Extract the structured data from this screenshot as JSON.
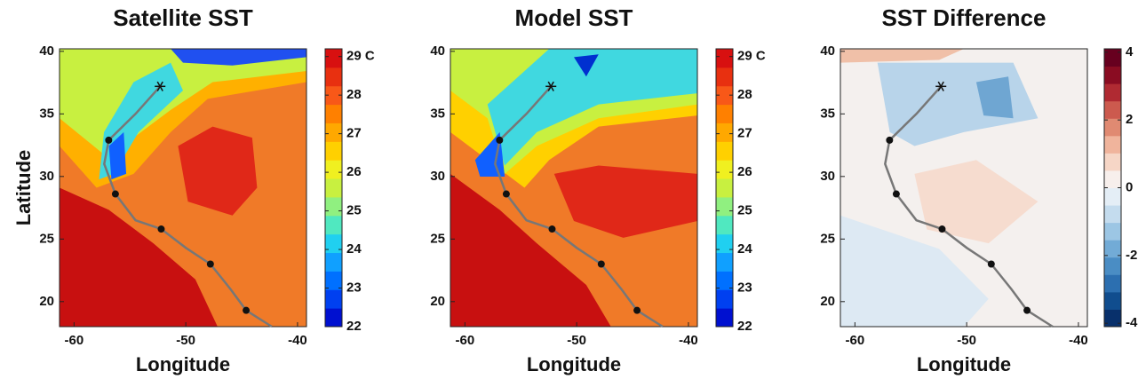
{
  "chart_data": [
    {
      "type": "map",
      "title": "Satellite SST",
      "xlabel": "Longitude",
      "ylabel": "Latitude",
      "xlim": [
        -61.3,
        -39.2
      ],
      "ylim": [
        18,
        40.2
      ],
      "xticks": [
        -60,
        -50,
        -40
      ],
      "yticks": [
        20,
        25,
        30,
        35,
        40
      ],
      "clim": [
        22,
        29.2
      ],
      "cticks": [
        22,
        23,
        24,
        25,
        26,
        27,
        28,
        {
          "value": 29,
          "label": "29 C"
        }
      ],
      "colormap": [
        "#0010d0",
        "#0040f0",
        "#0070ff",
        "#10a0ff",
        "#20d0f0",
        "#50e8c0",
        "#90f080",
        "#c8f040",
        "#f0f020",
        "#ffd000",
        "#ffa800",
        "#ff8000",
        "#f85818",
        "#e83010",
        "#d81010"
      ],
      "track": {
        "x": [
          -52.3,
          -54.5,
          -56.9,
          -57.3,
          -56.3,
          -54.5,
          -52.2,
          -50,
          -47.8,
          -46,
          -44.6,
          -42.3
        ],
        "y": [
          37.2,
          35,
          32.9,
          31,
          28.6,
          26.5,
          25.8,
          24.3,
          23.0,
          21,
          19.3,
          18
        ]
      },
      "markers": {
        "x": [
          -56.9,
          -56.3,
          -52.2,
          -47.8,
          -44.6
        ],
        "y": [
          32.9,
          28.6,
          25.8,
          23.0,
          19.3
        ]
      },
      "star": {
        "x": -52.3,
        "y": 37.2
      }
    },
    {
      "type": "map",
      "title": "Model SST",
      "xlabel": "Longitude",
      "xlim": [
        -61.3,
        -39.2
      ],
      "ylim": [
        18,
        40.2
      ],
      "xticks": [
        -60,
        -50,
        -40
      ],
      "yticks": [
        20,
        25,
        30,
        35,
        40
      ],
      "clim": [
        22,
        29.2
      ],
      "cticks": [
        22,
        23,
        24,
        25,
        26,
        27,
        28,
        {
          "value": 29,
          "label": "29 C"
        }
      ],
      "colormap": [
        "#0010d0",
        "#0040f0",
        "#0070ff",
        "#10a0ff",
        "#20d0f0",
        "#50e8c0",
        "#90f080",
        "#c8f040",
        "#f0f020",
        "#ffd000",
        "#ffa800",
        "#ff8000",
        "#f85818",
        "#e83010",
        "#d81010"
      ],
      "track": {
        "x": [
          -52.3,
          -54.5,
          -56.9,
          -57.3,
          -56.3,
          -54.5,
          -52.2,
          -50,
          -47.8,
          -46,
          -44.6,
          -42.3
        ],
        "y": [
          37.2,
          35,
          32.9,
          31,
          28.6,
          26.5,
          25.8,
          24.3,
          23.0,
          21,
          19.3,
          18
        ]
      },
      "markers": {
        "x": [
          -56.9,
          -56.3,
          -52.2,
          -47.8,
          -44.6
        ],
        "y": [
          32.9,
          28.6,
          25.8,
          23.0,
          19.3
        ]
      },
      "star": {
        "x": -52.3,
        "y": 37.2
      }
    },
    {
      "type": "map",
      "title": "SST Difference",
      "xlabel": "Longitude",
      "xlim": [
        -61.3,
        -39.2
      ],
      "ylim": [
        18,
        40.2
      ],
      "xticks": [
        -60,
        -50,
        -40
      ],
      "yticks": [
        20,
        25,
        30,
        35,
        40
      ],
      "clim": [
        -4.1,
        4.1
      ],
      "cticks": [
        -4,
        -2,
        0,
        2,
        4
      ],
      "colormap": [
        "#08306b",
        "#104d8e",
        "#2c6fb0",
        "#4a8dc4",
        "#72abd6",
        "#9cc6e4",
        "#c4dcee",
        "#e4eef6",
        "#f7efec",
        "#f6d6c6",
        "#f0b49c",
        "#e08a72",
        "#cc5a4e",
        "#b02a32",
        "#8a0c22",
        "#67001f"
      ],
      "track": {
        "x": [
          -52.3,
          -54.5,
          -56.9,
          -57.3,
          -56.3,
          -54.5,
          -52.2,
          -50,
          -47.8,
          -46,
          -44.6,
          -42.3
        ],
        "y": [
          37.2,
          35,
          32.9,
          31,
          28.6,
          26.5,
          25.8,
          24.3,
          23.0,
          21,
          19.3,
          18
        ]
      },
      "markers": {
        "x": [
          -56.9,
          -56.3,
          -52.2,
          -47.8,
          -44.6
        ],
        "y": [
          32.9,
          28.6,
          25.8,
          23.0,
          19.3
        ]
      },
      "star": {
        "x": -52.3,
        "y": 37.2
      }
    }
  ]
}
